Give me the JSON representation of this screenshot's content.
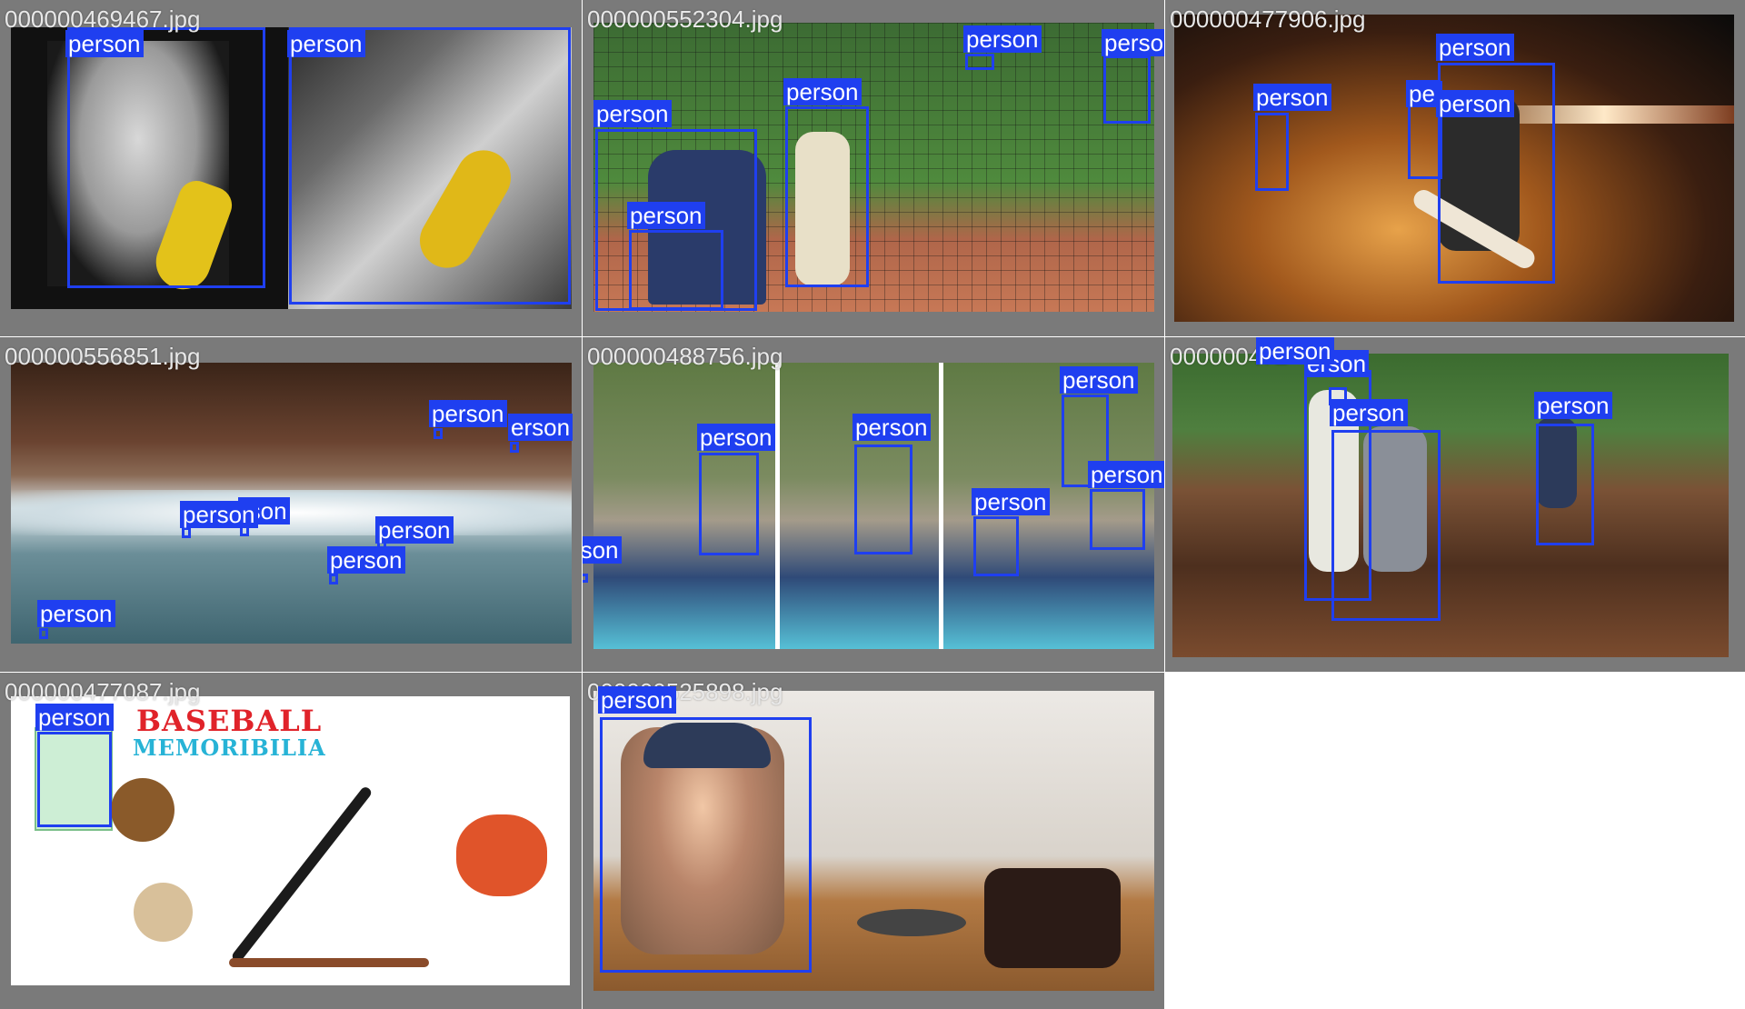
{
  "mosaic": {
    "box_color": "#1f3ff0",
    "tile_background": "#7a7a7a",
    "tiles": [
      {
        "filename": "000000469467.jpg",
        "labels": [
          "person",
          "person"
        ]
      },
      {
        "filename": "000000552304.jpg",
        "labels": [
          "person",
          "person",
          "person",
          "person",
          "person"
        ]
      },
      {
        "filename": "000000477906.jpg",
        "labels": [
          "person",
          "pe",
          "person"
        ]
      },
      {
        "filename": "000000556851.jpg",
        "labels": [
          "person",
          "erson",
          "person",
          "rson",
          "person",
          "person",
          "person"
        ]
      },
      {
        "filename": "000000488756.jpg",
        "labels": [
          "person",
          "person",
          "person",
          "person",
          "person",
          "person"
        ]
      },
      {
        "filename": "000000472",
        "labels": [
          "person",
          "erson",
          "person",
          "person"
        ]
      },
      {
        "filename": "000000477087.jpg",
        "labels": [
          "person"
        ]
      },
      {
        "filename": "000000525898.jpg",
        "labels": [
          "person"
        ]
      }
    ],
    "memorabilia_poster": {
      "line1": "BASEBALL",
      "line2": "MEMORIBILIA"
    }
  }
}
